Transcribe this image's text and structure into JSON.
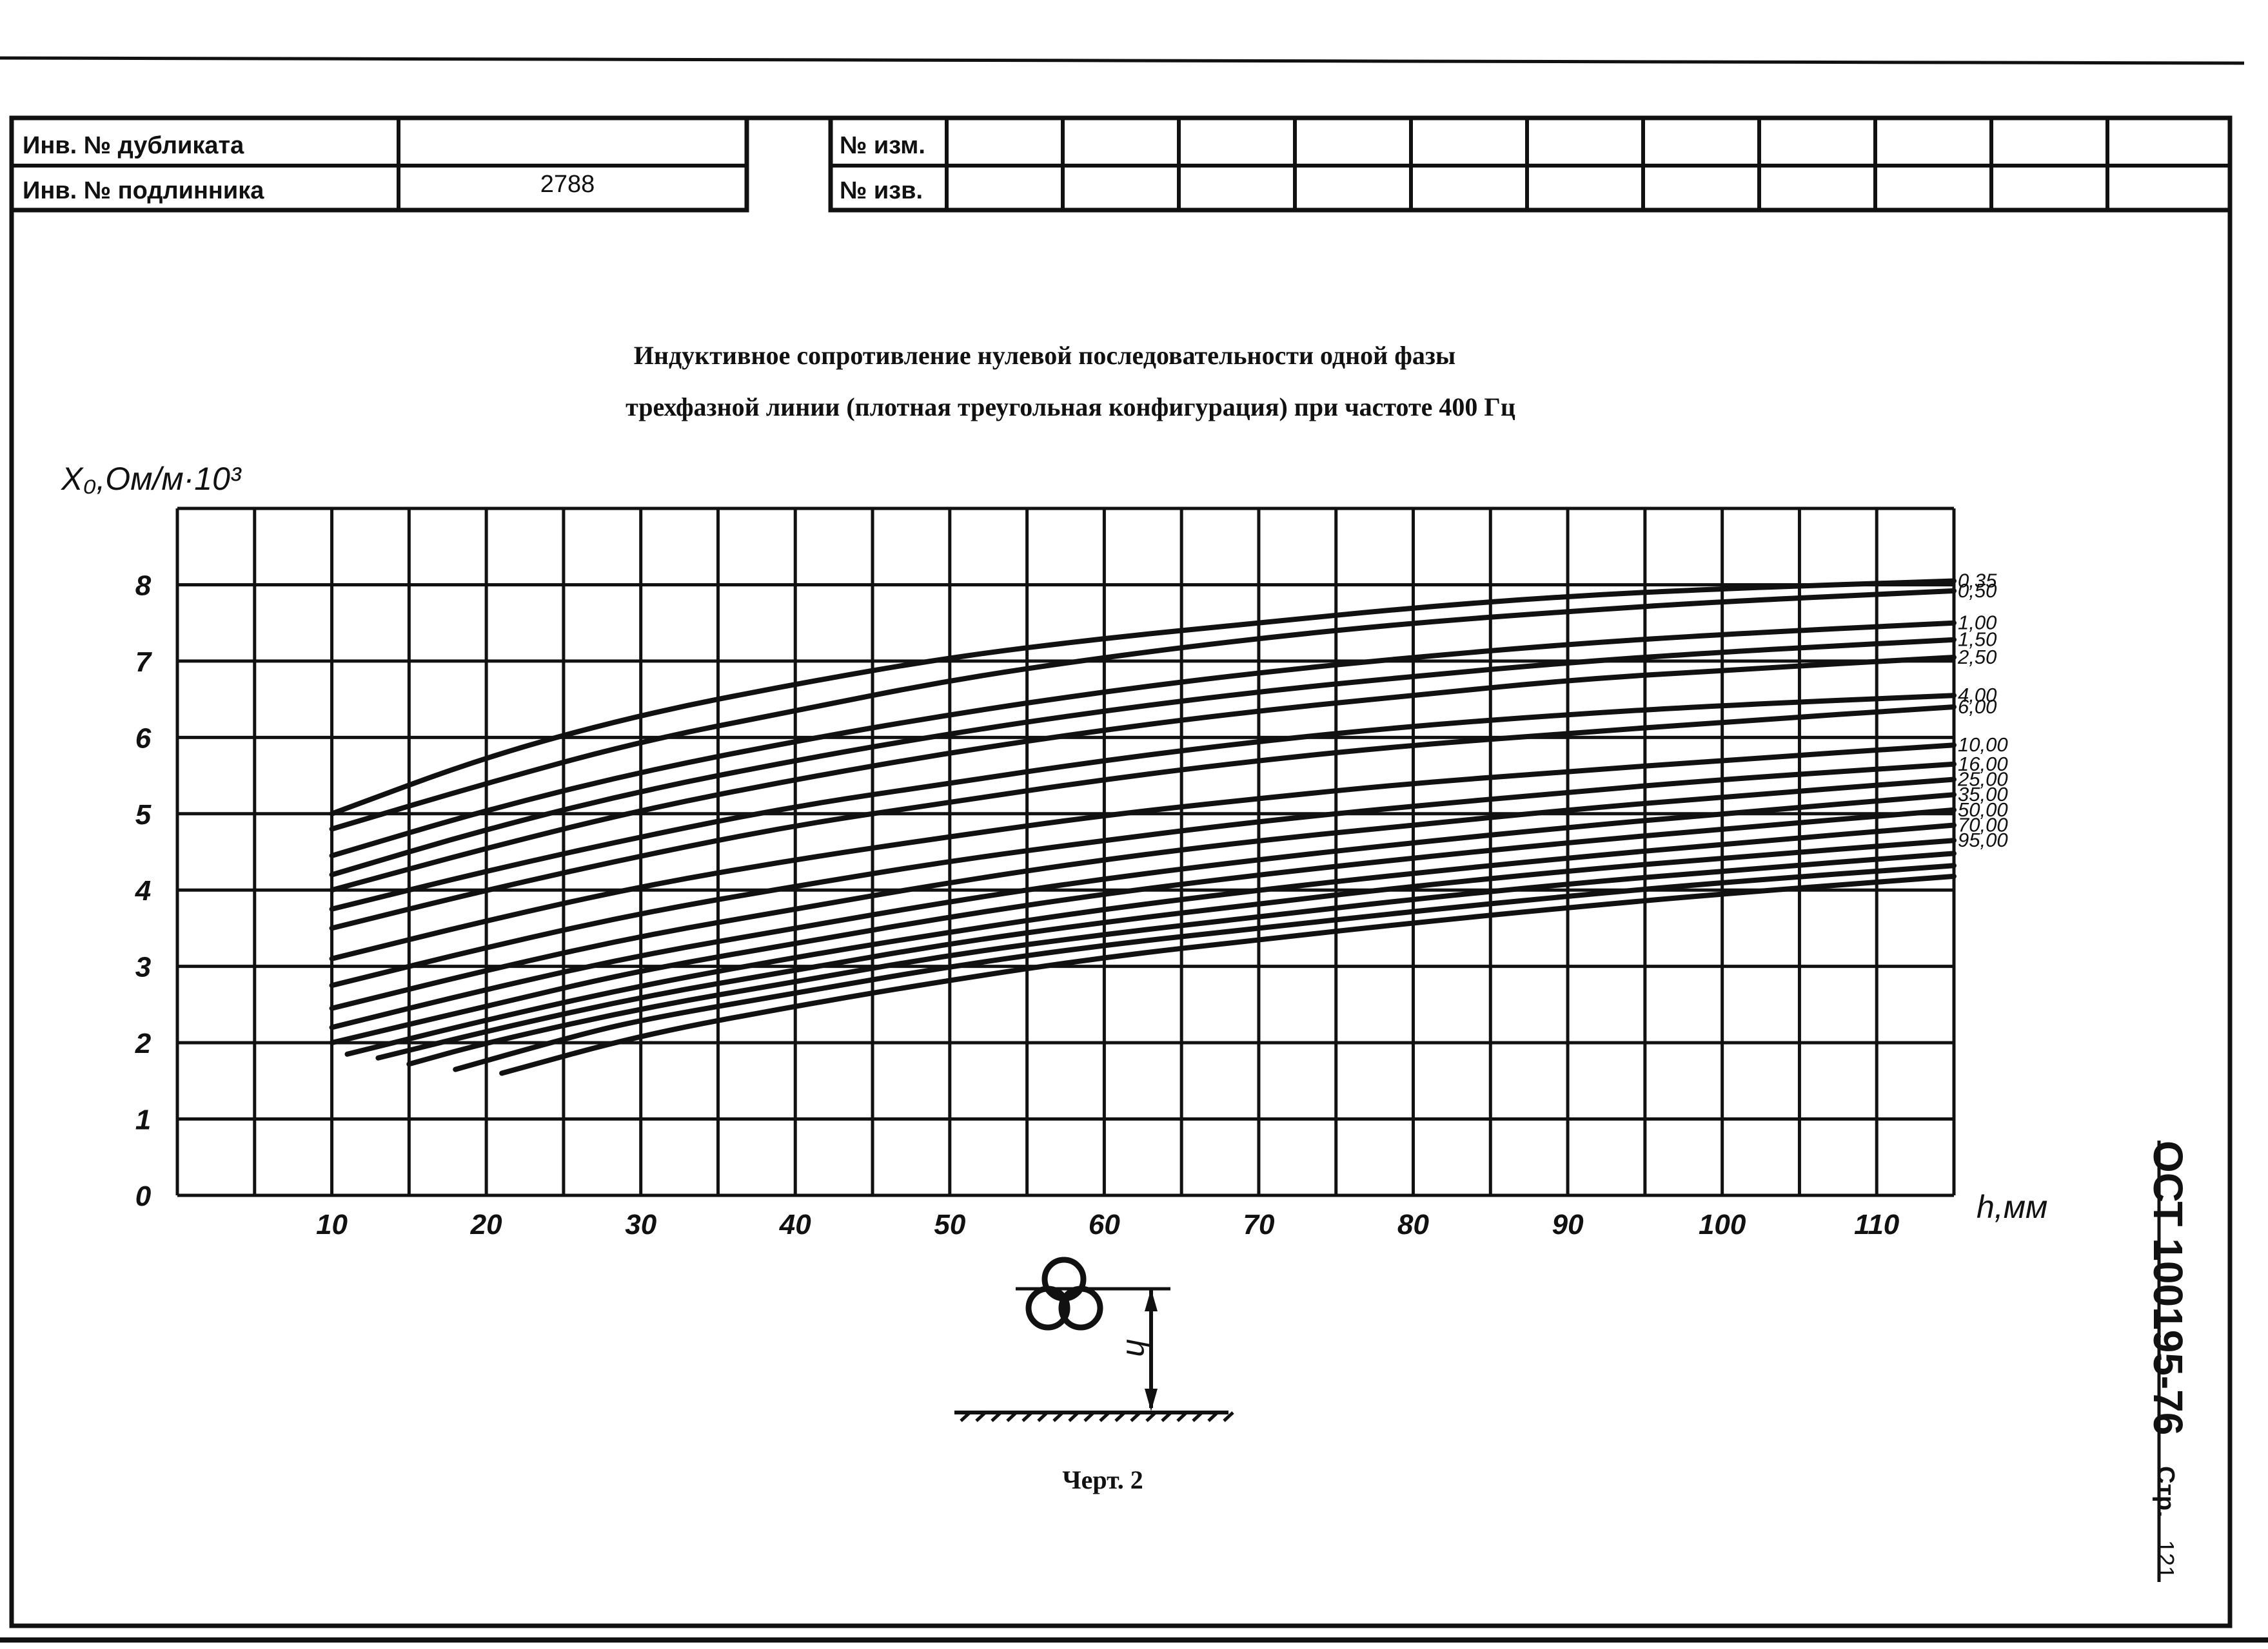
{
  "header": {
    "left_rows": [
      {
        "label": "Инв. № дубликата",
        "value": ""
      },
      {
        "label": "Инв. № подлинника",
        "value": "2788"
      }
    ],
    "right_rows": [
      {
        "label": "№ изм."
      },
      {
        "label": "№ изв."
      }
    ]
  },
  "title": {
    "line1": "Индуктивное сопротивление нулевой последовательности одной фазы",
    "line2": "трехфазной линии (плотная треугольная конфигурация) при частоте 400 Гц"
  },
  "diagram": {
    "height_symbol": "h"
  },
  "caption": "Черт. 2",
  "side": {
    "code": "ОСТ 100195-76",
    "page_label": "Стр.",
    "page_number": "121"
  },
  "chart_data": {
    "type": "line",
    "title": "Индуктивное сопротивление нулевой последовательности одной фазы трехфазной линии (плотная треугольная конфигурация) при частоте 400 Гц",
    "xlabel": "h,мм",
    "ylabel": "X₀,Ом/м·10³",
    "xlim": [
      0,
      115
    ],
    "ylim": [
      0,
      9
    ],
    "grid": true,
    "x_ticks": [
      "10",
      "20",
      "30",
      "40",
      "50",
      "60",
      "70",
      "80",
      "90",
      "100",
      "110"
    ],
    "y_ticks": [
      "0",
      "1",
      "2",
      "3",
      "4",
      "5",
      "6",
      "7",
      "8"
    ],
    "series": [
      {
        "name": "0,35",
        "points": [
          [
            10,
            5.0
          ],
          [
            20,
            5.75
          ],
          [
            30,
            6.3
          ],
          [
            40,
            6.7
          ],
          [
            50,
            7.05
          ],
          [
            60,
            7.3
          ],
          [
            70,
            7.5
          ],
          [
            80,
            7.7
          ],
          [
            90,
            7.85
          ],
          [
            100,
            7.95
          ],
          [
            115,
            8.05
          ]
        ]
      },
      {
        "name": "0,50",
        "points": [
          [
            10,
            4.8
          ],
          [
            20,
            5.4
          ],
          [
            30,
            5.95
          ],
          [
            40,
            6.35
          ],
          [
            50,
            6.75
          ],
          [
            60,
            7.05
          ],
          [
            70,
            7.3
          ],
          [
            80,
            7.5
          ],
          [
            90,
            7.65
          ],
          [
            100,
            7.78
          ],
          [
            115,
            7.92
          ]
        ]
      },
      {
        "name": "1,00",
        "points": [
          [
            10,
            4.45
          ],
          [
            20,
            5.05
          ],
          [
            30,
            5.55
          ],
          [
            40,
            5.95
          ],
          [
            50,
            6.3
          ],
          [
            60,
            6.6
          ],
          [
            70,
            6.85
          ],
          [
            80,
            7.05
          ],
          [
            90,
            7.22
          ],
          [
            100,
            7.35
          ],
          [
            115,
            7.5
          ]
        ]
      },
      {
        "name": "1,50",
        "points": [
          [
            10,
            4.2
          ],
          [
            20,
            4.8
          ],
          [
            30,
            5.3
          ],
          [
            40,
            5.7
          ],
          [
            50,
            6.05
          ],
          [
            60,
            6.35
          ],
          [
            70,
            6.6
          ],
          [
            80,
            6.8
          ],
          [
            90,
            6.98
          ],
          [
            100,
            7.12
          ],
          [
            115,
            7.28
          ]
        ]
      },
      {
        "name": "2,50",
        "points": [
          [
            10,
            4.0
          ],
          [
            20,
            4.55
          ],
          [
            30,
            5.05
          ],
          [
            40,
            5.45
          ],
          [
            50,
            5.8
          ],
          [
            60,
            6.1
          ],
          [
            70,
            6.35
          ],
          [
            80,
            6.55
          ],
          [
            90,
            6.75
          ],
          [
            100,
            6.88
          ],
          [
            115,
            7.05
          ]
        ]
      },
      {
        "name": "4,00",
        "points": [
          [
            10,
            3.75
          ],
          [
            20,
            4.25
          ],
          [
            30,
            4.7
          ],
          [
            40,
            5.1
          ],
          [
            50,
            5.4
          ],
          [
            60,
            5.7
          ],
          [
            70,
            5.95
          ],
          [
            80,
            6.15
          ],
          [
            90,
            6.3
          ],
          [
            100,
            6.42
          ],
          [
            115,
            6.55
          ]
        ]
      },
      {
        "name": "6,00",
        "points": [
          [
            10,
            3.5
          ],
          [
            20,
            4.0
          ],
          [
            30,
            4.45
          ],
          [
            40,
            4.85
          ],
          [
            50,
            5.15
          ],
          [
            60,
            5.45
          ],
          [
            70,
            5.7
          ],
          [
            80,
            5.9
          ],
          [
            90,
            6.05
          ],
          [
            100,
            6.2
          ],
          [
            115,
            6.4
          ]
        ]
      },
      {
        "name": "10,00",
        "points": [
          [
            10,
            3.1
          ],
          [
            20,
            3.6
          ],
          [
            30,
            4.05
          ],
          [
            40,
            4.4
          ],
          [
            50,
            4.7
          ],
          [
            60,
            4.98
          ],
          [
            70,
            5.2
          ],
          [
            80,
            5.4
          ],
          [
            90,
            5.55
          ],
          [
            100,
            5.7
          ],
          [
            115,
            5.9
          ]
        ]
      },
      {
        "name": "16,00",
        "points": [
          [
            10,
            2.75
          ],
          [
            20,
            3.25
          ],
          [
            30,
            3.7
          ],
          [
            40,
            4.05
          ],
          [
            50,
            4.38
          ],
          [
            60,
            4.65
          ],
          [
            70,
            4.9
          ],
          [
            80,
            5.1
          ],
          [
            90,
            5.28
          ],
          [
            100,
            5.45
          ],
          [
            115,
            5.65
          ]
        ]
      },
      {
        "name": "25,00",
        "points": [
          [
            10,
            2.45
          ],
          [
            20,
            2.95
          ],
          [
            30,
            3.4
          ],
          [
            40,
            3.75
          ],
          [
            50,
            4.1
          ],
          [
            60,
            4.4
          ],
          [
            70,
            4.65
          ],
          [
            80,
            4.85
          ],
          [
            90,
            5.05
          ],
          [
            100,
            5.22
          ],
          [
            115,
            5.45
          ]
        ]
      },
      {
        "name": "35,00",
        "points": [
          [
            10,
            2.2
          ],
          [
            20,
            2.7
          ],
          [
            30,
            3.15
          ],
          [
            40,
            3.5
          ],
          [
            50,
            3.85
          ],
          [
            60,
            4.15
          ],
          [
            70,
            4.4
          ],
          [
            80,
            4.62
          ],
          [
            90,
            4.82
          ],
          [
            100,
            5.0
          ],
          [
            115,
            5.25
          ]
        ]
      },
      {
        "name": "50,00",
        "points": [
          [
            10,
            2.0
          ],
          [
            20,
            2.48
          ],
          [
            30,
            2.95
          ],
          [
            40,
            3.3
          ],
          [
            50,
            3.65
          ],
          [
            60,
            3.95
          ],
          [
            70,
            4.2
          ],
          [
            80,
            4.42
          ],
          [
            90,
            4.62
          ],
          [
            100,
            4.8
          ],
          [
            115,
            5.05
          ]
        ]
      },
      {
        "name": "70,00",
        "points": [
          [
            11,
            1.85
          ],
          [
            20,
            2.3
          ],
          [
            30,
            2.75
          ],
          [
            40,
            3.12
          ],
          [
            50,
            3.45
          ],
          [
            60,
            3.75
          ],
          [
            70,
            4.0
          ],
          [
            80,
            4.22
          ],
          [
            90,
            4.42
          ],
          [
            100,
            4.6
          ],
          [
            115,
            4.85
          ]
        ]
      },
      {
        "name": "95,00",
        "points": [
          [
            13,
            1.8
          ],
          [
            20,
            2.15
          ],
          [
            30,
            2.6
          ],
          [
            40,
            2.95
          ],
          [
            50,
            3.3
          ],
          [
            60,
            3.58
          ],
          [
            70,
            3.82
          ],
          [
            80,
            4.05
          ],
          [
            90,
            4.25
          ],
          [
            100,
            4.42
          ],
          [
            115,
            4.65
          ]
        ]
      },
      {
        "name": "",
        "points": [
          [
            15,
            1.72
          ],
          [
            20,
            2.0
          ],
          [
            30,
            2.45
          ],
          [
            40,
            2.8
          ],
          [
            50,
            3.15
          ],
          [
            60,
            3.42
          ],
          [
            70,
            3.65
          ],
          [
            80,
            3.88
          ],
          [
            90,
            4.08
          ],
          [
            100,
            4.25
          ],
          [
            115,
            4.48
          ]
        ]
      },
      {
        "name": "",
        "points": [
          [
            18,
            1.65
          ],
          [
            25,
            2.05
          ],
          [
            30,
            2.3
          ],
          [
            40,
            2.65
          ],
          [
            50,
            3.0
          ],
          [
            60,
            3.28
          ],
          [
            70,
            3.5
          ],
          [
            80,
            3.72
          ],
          [
            90,
            3.92
          ],
          [
            100,
            4.1
          ],
          [
            115,
            4.32
          ]
        ]
      },
      {
        "name": "",
        "points": [
          [
            21,
            1.6
          ],
          [
            30,
            2.1
          ],
          [
            40,
            2.48
          ],
          [
            50,
            2.82
          ],
          [
            60,
            3.12
          ],
          [
            70,
            3.35
          ],
          [
            80,
            3.57
          ],
          [
            90,
            3.77
          ],
          [
            100,
            3.95
          ],
          [
            115,
            4.18
          ]
        ]
      }
    ]
  }
}
